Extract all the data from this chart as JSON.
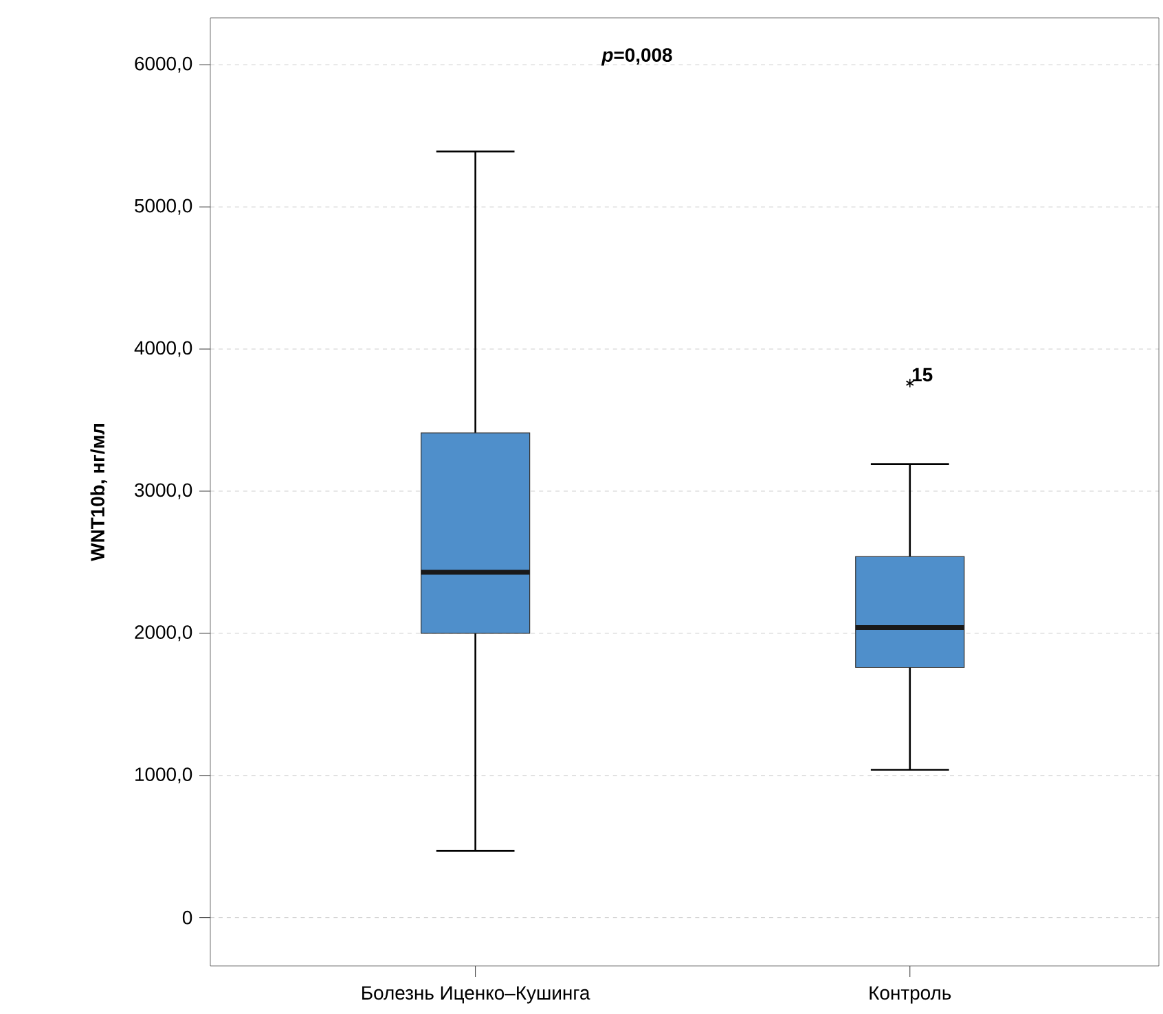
{
  "chart_data": {
    "type": "box",
    "ylabel": "WNT10b, нг/мл",
    "categories": [
      "Болезнь Иценко–Кушинга",
      "Контроль"
    ],
    "boxes": [
      {
        "low": 470,
        "q1": 2000,
        "median": 2430,
        "q3": 3410,
        "high": 5390
      },
      {
        "low": 1040,
        "q1": 1760,
        "median": 2040,
        "q3": 2540,
        "high": 3190,
        "outliers": [
          3760
        ]
      }
    ],
    "color": "#4f8fcb",
    "marker": "star",
    "ylim": [
      -340,
      6330
    ],
    "yticks": [
      0,
      {
        "value": 1000,
        "label": "1000,0"
      },
      {
        "value": 2000,
        "label": "2000,0"
      },
      {
        "value": 3000,
        "label": "3000,0"
      },
      {
        "value": 4000,
        "label": "4000,0"
      },
      {
        "value": 5000,
        "label": "5000,0"
      },
      {
        "value": 6000,
        "label": "6000,0"
      }
    ],
    "grid": "y",
    "annotations": [
      "*p*=0,008",
      "15"
    ]
  }
}
